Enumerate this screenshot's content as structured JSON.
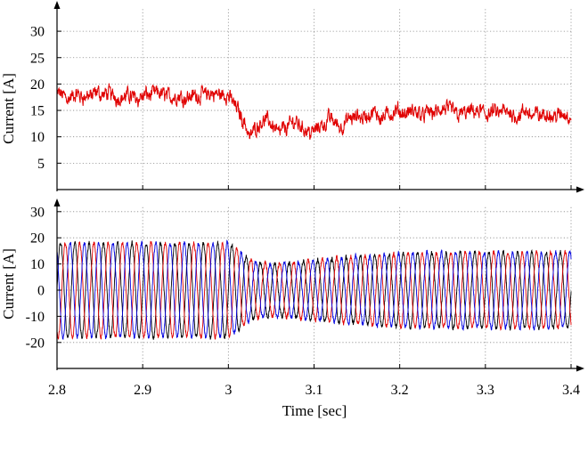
{
  "chart_data": [
    {
      "type": "line",
      "panel": "top",
      "title": "",
      "xlabel": "",
      "ylabel": "Current [A]",
      "xlim": [
        2.8,
        3.4
      ],
      "ylim": [
        0,
        32
      ],
      "xticks": [
        2.8,
        2.9,
        3.0,
        3.1,
        3.2,
        3.3,
        3.4
      ],
      "yticks": [
        5,
        10,
        15,
        20,
        25,
        30
      ],
      "ytick_labels": [
        "5",
        "10",
        "15",
        "20",
        "25",
        "30"
      ],
      "grid": true,
      "colors": [
        "#e00000"
      ],
      "series": [
        {
          "color": "#e00000",
          "description": "noisy current magnitude",
          "x": [
            2.8,
            2.82,
            2.84,
            2.86,
            2.88,
            2.9,
            2.92,
            2.94,
            2.96,
            2.98,
            3.0,
            3.01,
            3.02,
            3.025,
            3.03,
            3.04,
            3.05,
            3.06,
            3.07,
            3.08,
            3.09,
            3.1,
            3.11,
            3.12,
            3.13,
            3.14,
            3.16,
            3.18,
            3.2,
            3.22,
            3.24,
            3.26,
            3.28,
            3.3,
            3.32,
            3.34,
            3.36,
            3.38,
            3.4
          ],
          "values": [
            18.0,
            17.5,
            17.8,
            18.0,
            17.6,
            17.8,
            18.0,
            17.7,
            17.9,
            18.0,
            17.8,
            15.5,
            12.5,
            10.0,
            11.5,
            13.5,
            12.5,
            11.0,
            12.0,
            13.0,
            11.5,
            11.0,
            12.5,
            13.5,
            12.0,
            13.0,
            14.0,
            14.2,
            14.3,
            14.5,
            14.6,
            14.8,
            14.5,
            14.5,
            14.3,
            14.4,
            14.2,
            14.1,
            14.0
          ]
        }
      ]
    },
    {
      "type": "line",
      "panel": "bottom",
      "title": "",
      "xlabel": "Time [sec]",
      "ylabel": "Current [A]",
      "xlim": [
        2.8,
        3.4
      ],
      "ylim": [
        -31,
        33
      ],
      "xticks": [
        2.8,
        2.9,
        3.0,
        3.1,
        3.2,
        3.3,
        3.4
      ],
      "xtick_labels": [
        "2.8",
        "2.9",
        "3",
        "3.1",
        "3.2",
        "3.3",
        "3.4"
      ],
      "yticks": [
        -20,
        -10,
        0,
        10,
        20,
        30
      ],
      "ytick_labels": [
        "-20",
        "-10",
        "0",
        "10",
        "20",
        "30"
      ],
      "grid": true,
      "colors": [
        "#000000",
        "#e00000",
        "#0000e0"
      ],
      "signal_model": {
        "frequency_hz": 60,
        "phase_shift_deg": 120,
        "time_points": [
          2.8,
          3.0,
          3.01,
          3.02,
          3.03,
          3.05,
          3.07,
          3.1,
          3.15,
          3.2,
          3.3,
          3.4
        ],
        "amplitudes": [
          18.0,
          18.0,
          16.0,
          13.0,
          11.0,
          10.0,
          10.5,
          11.5,
          13.0,
          14.0,
          14.5,
          14.5
        ]
      },
      "series": [
        {
          "color": "#000000",
          "phase_deg": 0
        },
        {
          "color": "#e00000",
          "phase_deg": -120
        },
        {
          "color": "#0000e0",
          "phase_deg": 120
        }
      ]
    }
  ]
}
